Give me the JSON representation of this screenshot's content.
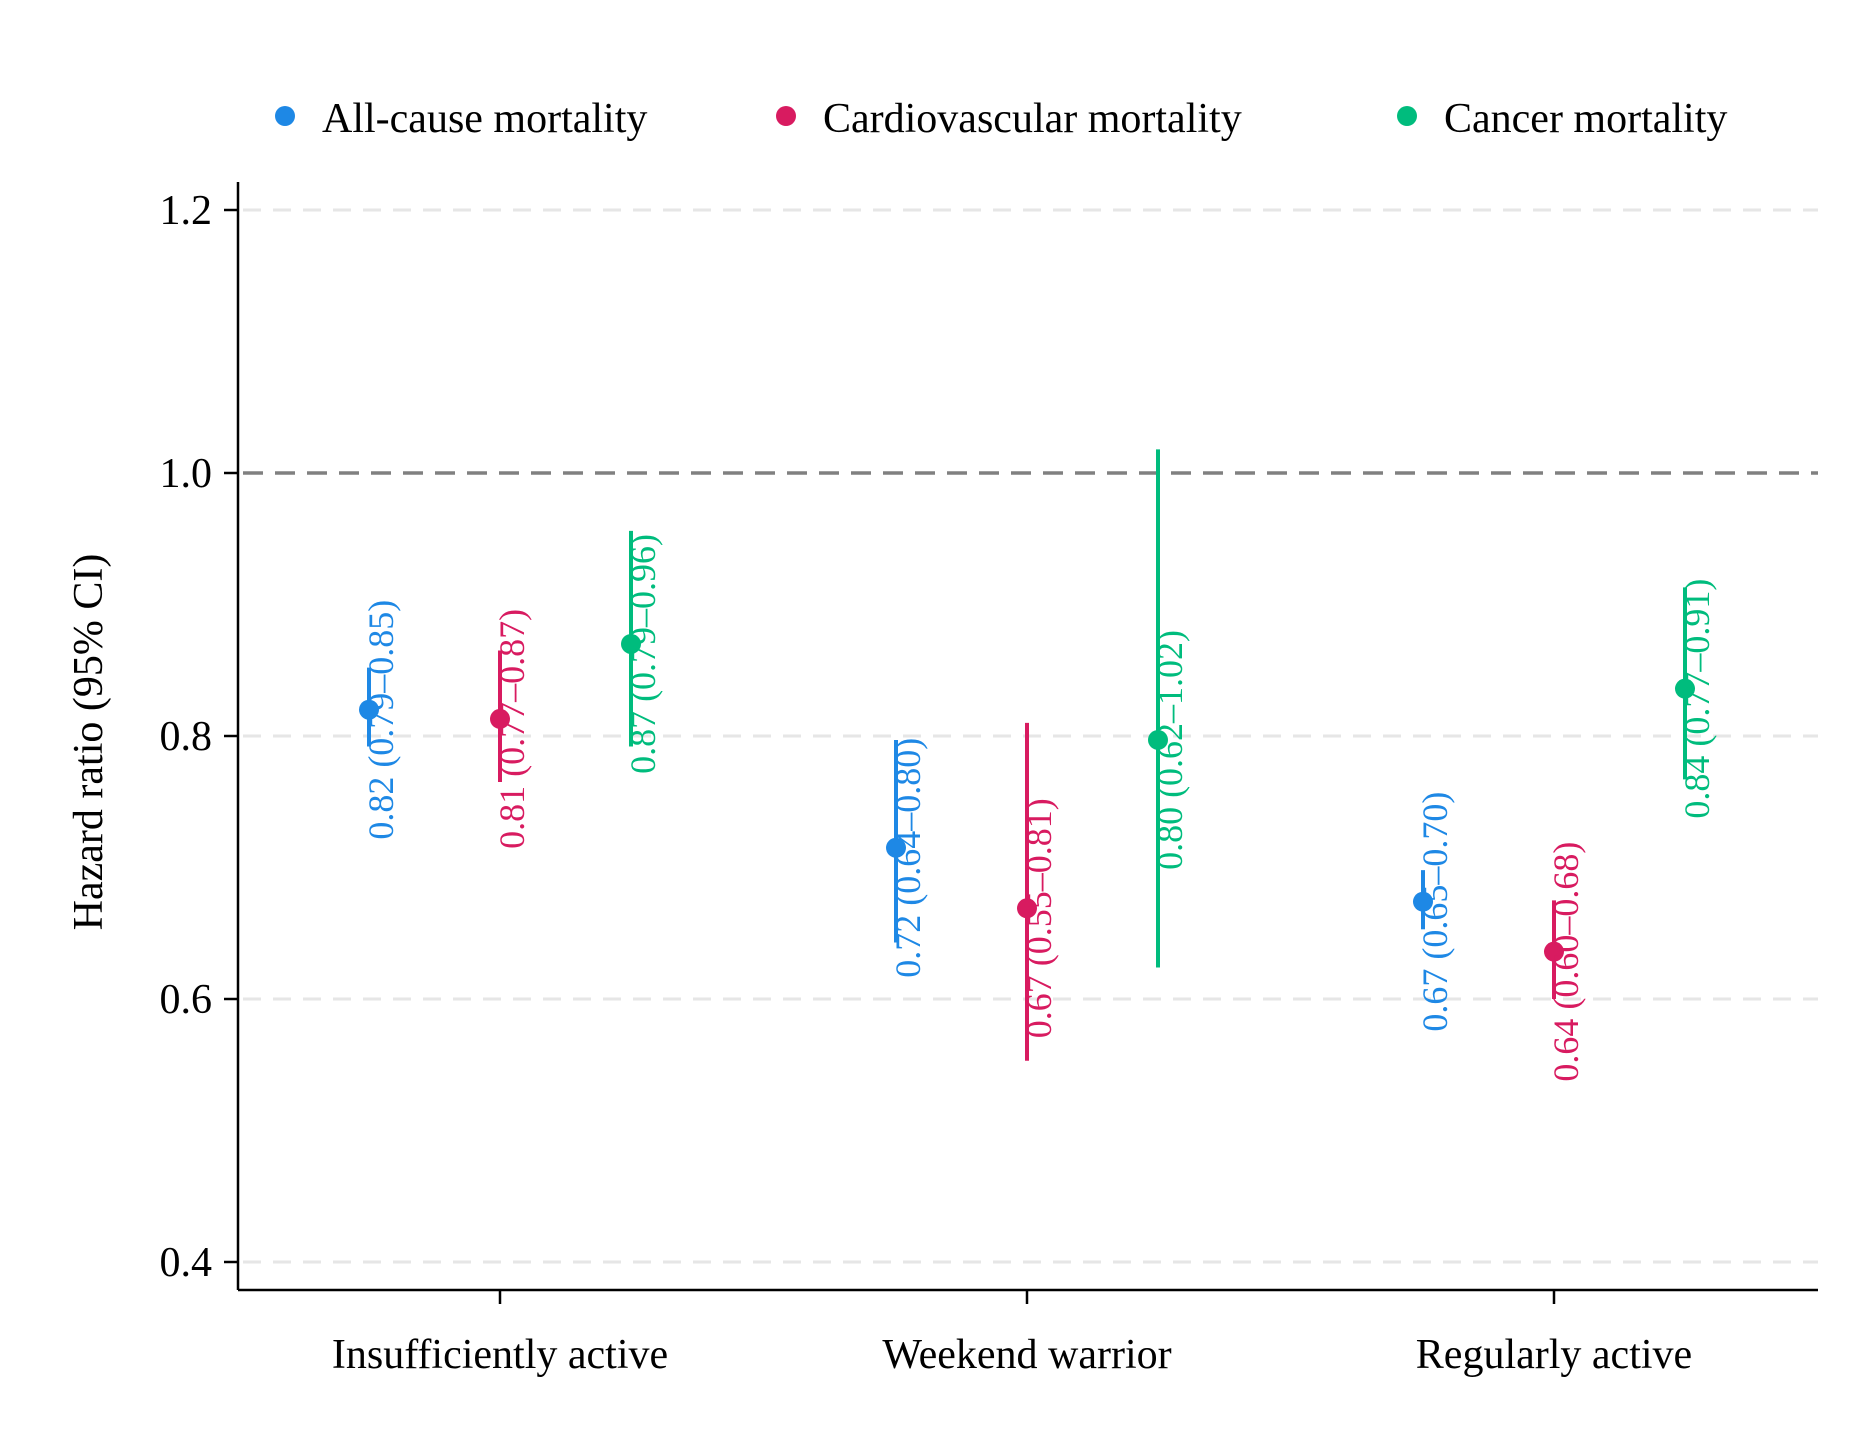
{
  "colors": {
    "all_cause": "#1E88E5",
    "cardiovascular": "#D81B60",
    "cancer": "#00BC7D",
    "axis": "#000000",
    "grid": "#E6E6E6",
    "reference": "#808080"
  },
  "legend": [
    {
      "key": "all_cause",
      "label": "All-cause mortality"
    },
    {
      "key": "cardiovascular",
      "label": "Cardiovascular mortality"
    },
    {
      "key": "cancer",
      "label": "Cancer mortality"
    }
  ],
  "chart_data": {
    "type": "scatter",
    "subtype": "forest-plot with error bars",
    "title": "",
    "xlabel": "",
    "ylabel": "Hazard ratio (95% CI)",
    "ylim": [
      0.4,
      1.22
    ],
    "yticks": [
      0.4,
      0.6,
      0.8,
      1.0,
      1.2
    ],
    "ytick_labels": [
      "0.4",
      "0.6",
      "0.8",
      "1.0",
      "1.2"
    ],
    "reference_line": 1.0,
    "grid": "horizontal dashed",
    "legend_position": "top",
    "categories": [
      "Insufficiently active",
      "Weekend warrior",
      "Regularly active"
    ],
    "series": [
      {
        "name": "All-cause mortality",
        "color_key": "all_cause",
        "values": [
          0.82,
          0.715,
          0.674
        ],
        "lower": [
          0.792,
          0.643,
          0.653
        ],
        "upper": [
          0.852,
          0.797,
          0.698
        ],
        "labels": [
          "0.82 (0.79–0.85)",
          "0.72 (0.64–0.80)",
          "0.67 (0.65–0.70)"
        ]
      },
      {
        "name": "Cardiovascular mortality",
        "color_key": "cardiovascular",
        "values": [
          0.813,
          0.669,
          0.636
        ],
        "lower": [
          0.765,
          0.553,
          0.6
        ],
        "upper": [
          0.865,
          0.81,
          0.675
        ],
        "labels": [
          "0.81 (0.77–0.87)",
          "0.67 (0.55–0.81)",
          "0.64 (0.60–0.68)"
        ]
      },
      {
        "name": "Cancer mortality",
        "color_key": "cancer",
        "values": [
          0.87,
          0.797,
          0.836
        ],
        "lower": [
          0.792,
          0.624,
          0.767
        ],
        "upper": [
          0.956,
          1.018,
          0.913
        ],
        "labels": [
          "0.87 (0.79–0.96)",
          "0.80 (0.62–1.02)",
          "0.84 (0.77–0.91)"
        ]
      }
    ]
  }
}
